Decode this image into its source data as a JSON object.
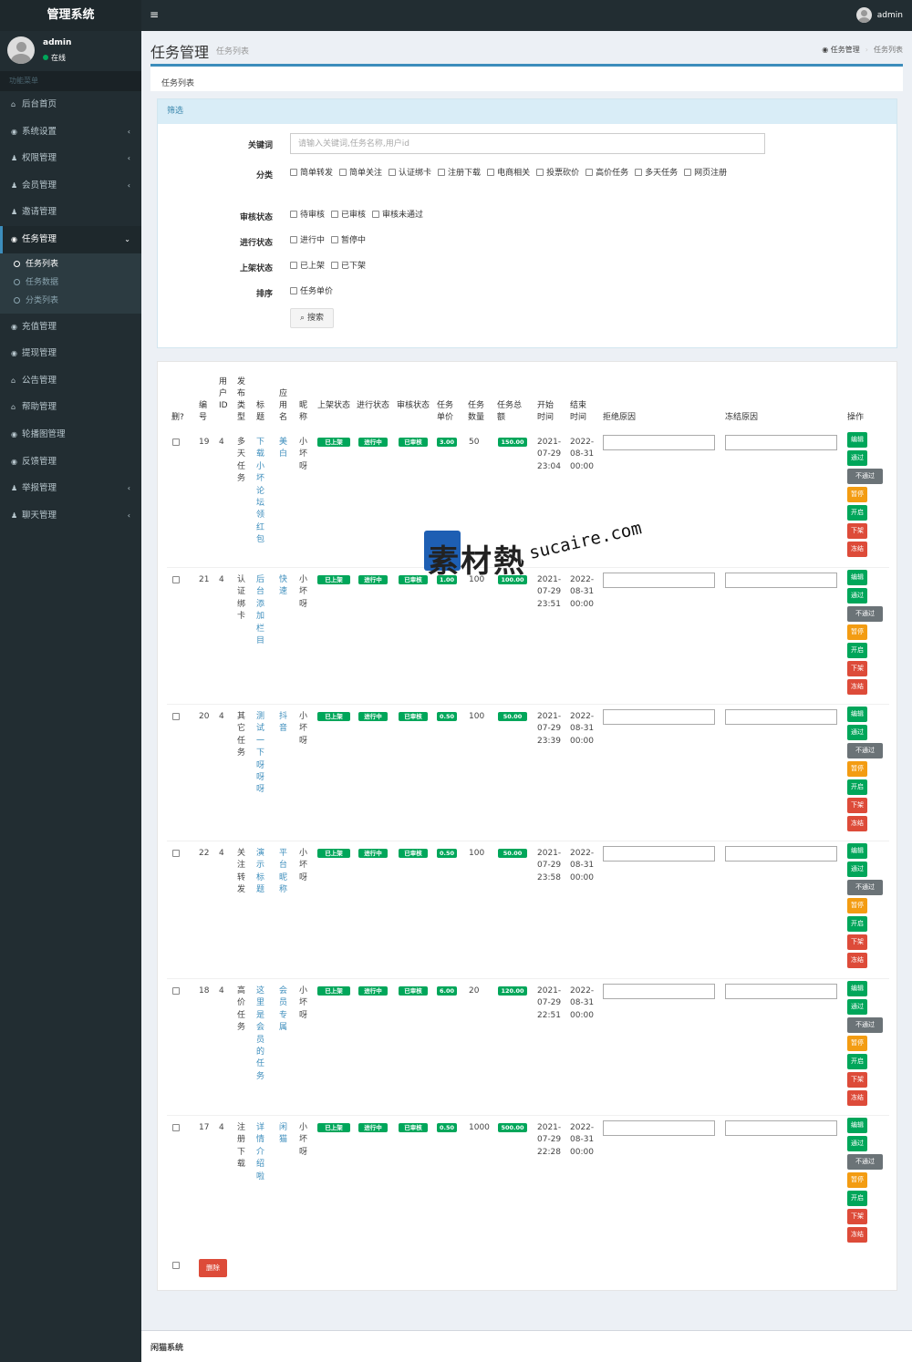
{
  "topbar": {
    "brand": "管理系统",
    "menu_icon": "≡",
    "user": "admin"
  },
  "sidebar": {
    "user": {
      "name": "admin",
      "status": "在线"
    },
    "menu_header": "功能菜单",
    "items": [
      {
        "label": "后台首页",
        "icon": "home-icon",
        "glyph": "⌂",
        "has_sub": false
      },
      {
        "label": "系统设置",
        "icon": "dashboard-icon",
        "glyph": "◉",
        "has_sub": true
      },
      {
        "label": "权限管理",
        "icon": "users-icon",
        "glyph": "♟",
        "has_sub": true
      },
      {
        "label": "会员管理",
        "icon": "users-icon",
        "glyph": "♟",
        "has_sub": true
      },
      {
        "label": "邀请管理",
        "icon": "users-icon",
        "glyph": "♟",
        "has_sub": false
      },
      {
        "label": "任务管理",
        "icon": "dashboard-icon",
        "glyph": "◉",
        "has_sub": true,
        "active": true,
        "sub": [
          {
            "label": "任务列表",
            "active": true
          },
          {
            "label": "任务数据"
          },
          {
            "label": "分类列表"
          }
        ]
      },
      {
        "label": "充值管理",
        "icon": "dashboard-icon",
        "glyph": "◉",
        "has_sub": false
      },
      {
        "label": "提现管理",
        "icon": "dashboard-icon",
        "glyph": "◉",
        "has_sub": false
      },
      {
        "label": "公告管理",
        "icon": "home-icon",
        "glyph": "⌂",
        "has_sub": false
      },
      {
        "label": "帮助管理",
        "icon": "home-icon",
        "glyph": "⌂",
        "has_sub": false
      },
      {
        "label": "轮播图管理",
        "icon": "dashboard-icon",
        "glyph": "◉",
        "has_sub": false
      },
      {
        "label": "反馈管理",
        "icon": "dashboard-icon",
        "glyph": "◉",
        "has_sub": false
      },
      {
        "label": "举报管理",
        "icon": "users-icon",
        "glyph": "♟",
        "has_sub": true
      },
      {
        "label": "聊天管理",
        "icon": "users-icon",
        "glyph": "♟",
        "has_sub": true
      }
    ]
  },
  "header": {
    "title": "任务管理",
    "subtitle": "任务列表",
    "breadcrumb": [
      "任务管理",
      "任务列表"
    ]
  },
  "tab": {
    "label": "任务列表"
  },
  "filter": {
    "title": "筛选",
    "keyword": {
      "label": "关键词",
      "placeholder": "请输入关键词,任务名称,用户id",
      "value": ""
    },
    "category": {
      "label": "分类",
      "options": [
        "简单转发",
        "简单关注",
        "认证绑卡",
        "注册下载",
        "电商相关",
        "投票砍价",
        "高价任务",
        "多天任务",
        "网页注册"
      ]
    },
    "review": {
      "label": "审核状态",
      "options": [
        "待审核",
        "已审核",
        "审核未通过"
      ]
    },
    "progress": {
      "label": "进行状态",
      "options": [
        "进行中",
        "暂停中"
      ]
    },
    "shelf": {
      "label": "上架状态",
      "options": [
        "已上架",
        "已下架"
      ]
    },
    "sort": {
      "label": "排序",
      "options": [
        "任务单价"
      ]
    },
    "search_label": "搜索"
  },
  "table": {
    "headers": {
      "del": "删?",
      "id": "编号",
      "uid": "用户ID",
      "type": "发布类型",
      "title": "标题",
      "app": "应用名",
      "nick": "昵称",
      "shelf": "上架状态",
      "progress": "进行状态",
      "review": "审核状态",
      "price": "任务单价",
      "qty": "任务数量",
      "total": "任务总额",
      "start": "开始时间",
      "end": "结束时间",
      "reject": "拒绝原因",
      "freeze": "冻结原因",
      "ops": "操作"
    },
    "rows": [
      {
        "id": "19",
        "uid": "4",
        "type": "多天任务",
        "title": "下载小坏论坛领红包",
        "app": "美白",
        "nick": "小坏呀",
        "shelf": "已上架",
        "progress": "进行中",
        "review": "已审核",
        "price": "3.00",
        "qty": "50",
        "total": "150.00",
        "start": [
          "2021-",
          "07-29",
          "23:04"
        ],
        "end": [
          "2022-",
          "08-31",
          "00:00"
        ]
      },
      {
        "id": "21",
        "uid": "4",
        "type": "认证绑卡",
        "title": "后台添加栏目",
        "app": "快速",
        "nick": "小坏呀",
        "shelf": "已上架",
        "progress": "进行中",
        "review": "已审核",
        "price": "1.00",
        "qty": "100",
        "total": "100.00",
        "start": [
          "2021-",
          "07-29",
          "23:51"
        ],
        "end": [
          "2022-",
          "08-31",
          "00:00"
        ]
      },
      {
        "id": "20",
        "uid": "4",
        "type": "其它任务",
        "title": "测试一下呀呀呀",
        "app": "抖音",
        "nick": "小坏呀",
        "shelf": "已上架",
        "progress": "进行中",
        "review": "已审核",
        "price": "0.50",
        "qty": "100",
        "total": "50.00",
        "start": [
          "2021-",
          "07-29",
          "23:39"
        ],
        "end": [
          "2022-",
          "08-31",
          "00:00"
        ]
      },
      {
        "id": "22",
        "uid": "4",
        "type": "关注转发",
        "title": "演示标题",
        "app": "平台昵称",
        "nick": "小坏呀",
        "shelf": "已上架",
        "progress": "进行中",
        "review": "已审核",
        "price": "0.50",
        "qty": "100",
        "total": "50.00",
        "start": [
          "2021-",
          "07-29",
          "23:58"
        ],
        "end": [
          "2022-",
          "08-31",
          "00:00"
        ]
      },
      {
        "id": "18",
        "uid": "4",
        "type": "高价任务",
        "title": "这里是会员的任务",
        "app": "会员专属",
        "nick": "小坏呀",
        "shelf": "已上架",
        "progress": "进行中",
        "review": "已审核",
        "price": "6.00",
        "qty": "20",
        "total": "120.00",
        "start": [
          "2021-",
          "07-29",
          "22:51"
        ],
        "end": [
          "2022-",
          "08-31",
          "00:00"
        ]
      },
      {
        "id": "17",
        "uid": "4",
        "type": "注册下载",
        "title": "详情介绍啦",
        "app": "闲猫",
        "nick": "小坏呀",
        "shelf": "已上架",
        "progress": "进行中",
        "review": "已审核",
        "price": "0.50",
        "qty": "1000",
        "total": "500.00",
        "start": [
          "2021-",
          "07-29",
          "22:28"
        ],
        "end": [
          "2022-",
          "08-31",
          "00:00"
        ]
      }
    ],
    "actions": [
      {
        "label": "编辑",
        "color": "#00a65a"
      },
      {
        "label": "通过",
        "color": "#00a65a"
      },
      {
        "label": "不通过",
        "color": "#6b7377"
      },
      {
        "label": "暂停",
        "color": "#f39c12"
      },
      {
        "label": "开启",
        "color": "#00a65a"
      },
      {
        "label": "下架",
        "color": "#dd4b39"
      },
      {
        "label": "冻结",
        "color": "#dd4b39"
      }
    ],
    "delete_label": "删除"
  },
  "watermark": {
    "cn": "素材熱",
    "en": "sucaire.com"
  },
  "footer": {
    "text": "闲猫系统"
  },
  "colors": {
    "sidebar_bg": "#222d32",
    "accent": "#3c8dbc",
    "success": "#00a65a",
    "warning": "#f39c12",
    "danger": "#dd4b39"
  }
}
